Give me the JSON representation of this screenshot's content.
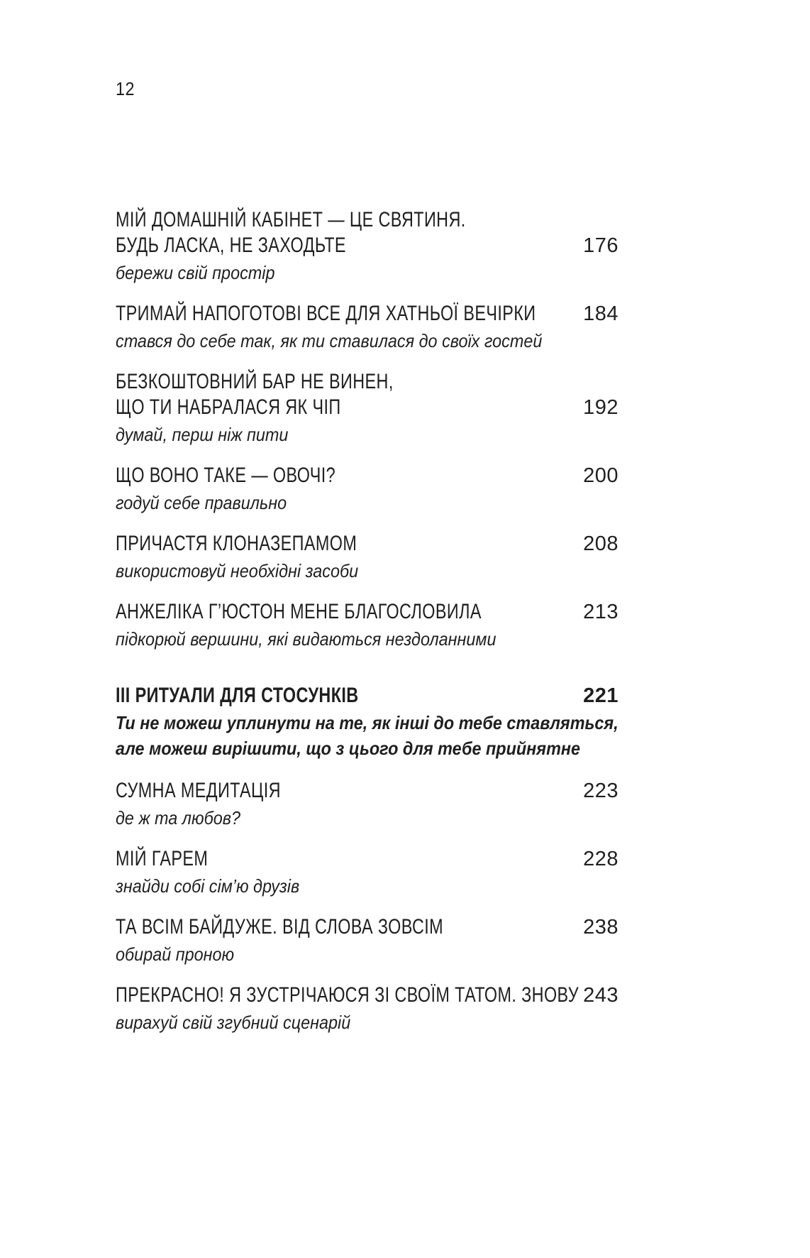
{
  "page": {
    "number": "12"
  },
  "toc": {
    "text_color": "#1f1f1f",
    "entries": [
      {
        "title_lines": [
          "МІЙ ДОМАШНІЙ КАБІНЕТ — ЦЕ СВЯТИНЯ.",
          "БУДЬ ЛАСКА, НЕ ЗАХОДЬТЕ"
        ],
        "subtitle_lines": [
          "бережи свій простір"
        ],
        "page": "176",
        "section": false
      },
      {
        "title_lines": [
          "ТРИМАЙ НАПОГОТОВІ ВСЕ ДЛЯ ХАТНЬОЇ ВЕЧІРКИ"
        ],
        "subtitle_lines": [
          "стався до себе так, як ти ставилася до своїх гостей"
        ],
        "page": "184",
        "section": false
      },
      {
        "title_lines": [
          "БЕЗКОШТОВНИЙ БАР НЕ ВИНЕН,",
          "ЩО ТИ НАБРАЛАСЯ ЯК ЧІП"
        ],
        "subtitle_lines": [
          "думай, перш ніж пити"
        ],
        "page": "192",
        "section": false
      },
      {
        "title_lines": [
          "ЩО ВОНО ТАКЕ — ОВОЧІ?"
        ],
        "subtitle_lines": [
          "годуй себе правильно"
        ],
        "page": "200",
        "section": false
      },
      {
        "title_lines": [
          "ПРИЧАСТЯ КЛОНАЗЕПАМОМ"
        ],
        "subtitle_lines": [
          "використовуй необхідні засоби"
        ],
        "page": "208",
        "section": false
      },
      {
        "title_lines": [
          "АНЖЕЛІКА Г’ЮСТОН МЕНЕ БЛАГОСЛОВИЛА"
        ],
        "subtitle_lines": [
          "підкорюй вершини, які видаються нездоланними"
        ],
        "page": "213",
        "section": false
      },
      {
        "title_lines": [
          "ІІІ РИТУАЛИ ДЛЯ СТОСУНКІВ"
        ],
        "subtitle_lines": [
          "Ти не можеш уплинути на те, як інші до тебе ставляться,",
          "але можеш вирішити, що з цього для тебе прийнятне"
        ],
        "page": "221",
        "section": true
      },
      {
        "title_lines": [
          "СУМНА МЕДИТАЦІЯ"
        ],
        "subtitle_lines": [
          "де ж та любов?"
        ],
        "page": "223",
        "section": false
      },
      {
        "title_lines": [
          "МІЙ ГАРЕМ"
        ],
        "subtitle_lines": [
          "знайди собі сім’ю друзів"
        ],
        "page": "228",
        "section": false
      },
      {
        "title_lines": [
          "ТА ВСІМ БАЙДУЖЕ. ВІД СЛОВА ЗОВСІМ"
        ],
        "subtitle_lines": [
          "обирай проною"
        ],
        "page": "238",
        "section": false
      },
      {
        "title_lines": [
          "ПРЕКРАСНО! Я ЗУСТРІЧАЮСЯ ЗІ СВОЇМ ТАТОМ. ЗНОВУ"
        ],
        "subtitle_lines": [
          "вирахуй свій згубний сценарій"
        ],
        "page": "243",
        "section": false
      }
    ]
  }
}
